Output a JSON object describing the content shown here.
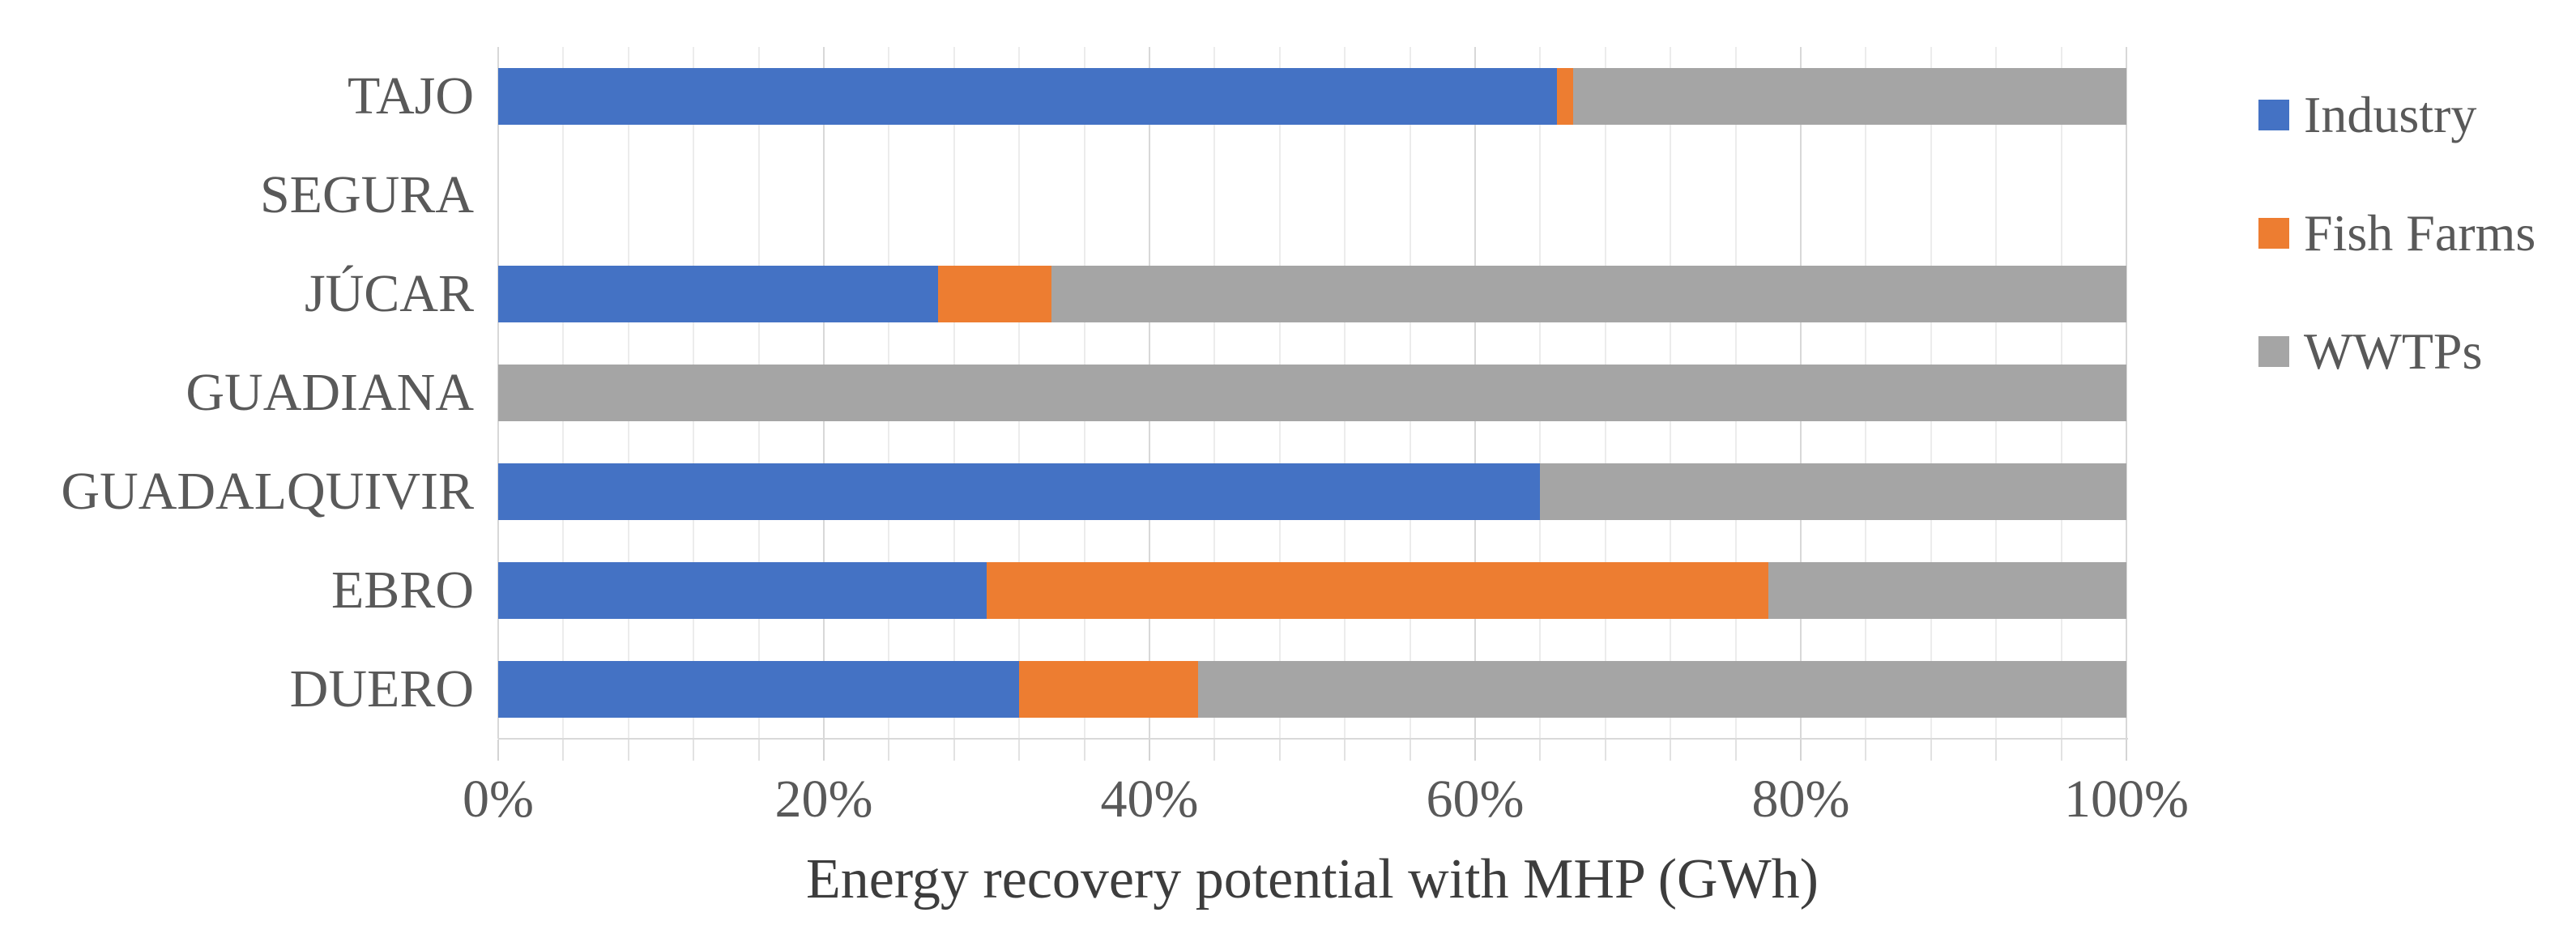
{
  "chart_data": {
    "type": "bar",
    "subtype": "stacked-horizontal-100pct",
    "title": "",
    "xlabel": "Energy recovery potential with MHP (GWh)",
    "ylabel": "",
    "categories": [
      "TAJO",
      "SEGURA",
      "JÚCAR",
      "GUADIANA",
      "GUADALQUIVIR",
      "EBRO",
      "DUERO"
    ],
    "series": [
      {
        "name": "Industry",
        "color": "#4472C4",
        "values": [
          65,
          0,
          27,
          0,
          64,
          30,
          32
        ]
      },
      {
        "name": "Fish Farms",
        "color": "#ED7D31",
        "values": [
          1,
          0,
          7,
          0,
          0,
          48,
          11
        ]
      },
      {
        "name": "WWTPs",
        "color": "#A5A5A5",
        "values": [
          34,
          0,
          66,
          100,
          36,
          22,
          57
        ]
      }
    ],
    "x_ticks": [
      "0%",
      "20%",
      "40%",
      "60%",
      "80%",
      "100%"
    ],
    "xlim": [
      0,
      100
    ],
    "gridlines": {
      "major_step_pct": 20,
      "minor_step_pct": 4,
      "visible": true
    },
    "legend_position": "right",
    "legend_entries": [
      "Industry",
      "Fish Farms",
      "WWTPs"
    ]
  },
  "colors": {
    "industry": "#4472C4",
    "fish_farms": "#ED7D31",
    "wwtps": "#A5A5A5",
    "gridline_minor": "#ececec",
    "gridline_major": "#d8d8d8",
    "axis_text": "#595959",
    "title_text": "#3d3d3d"
  }
}
